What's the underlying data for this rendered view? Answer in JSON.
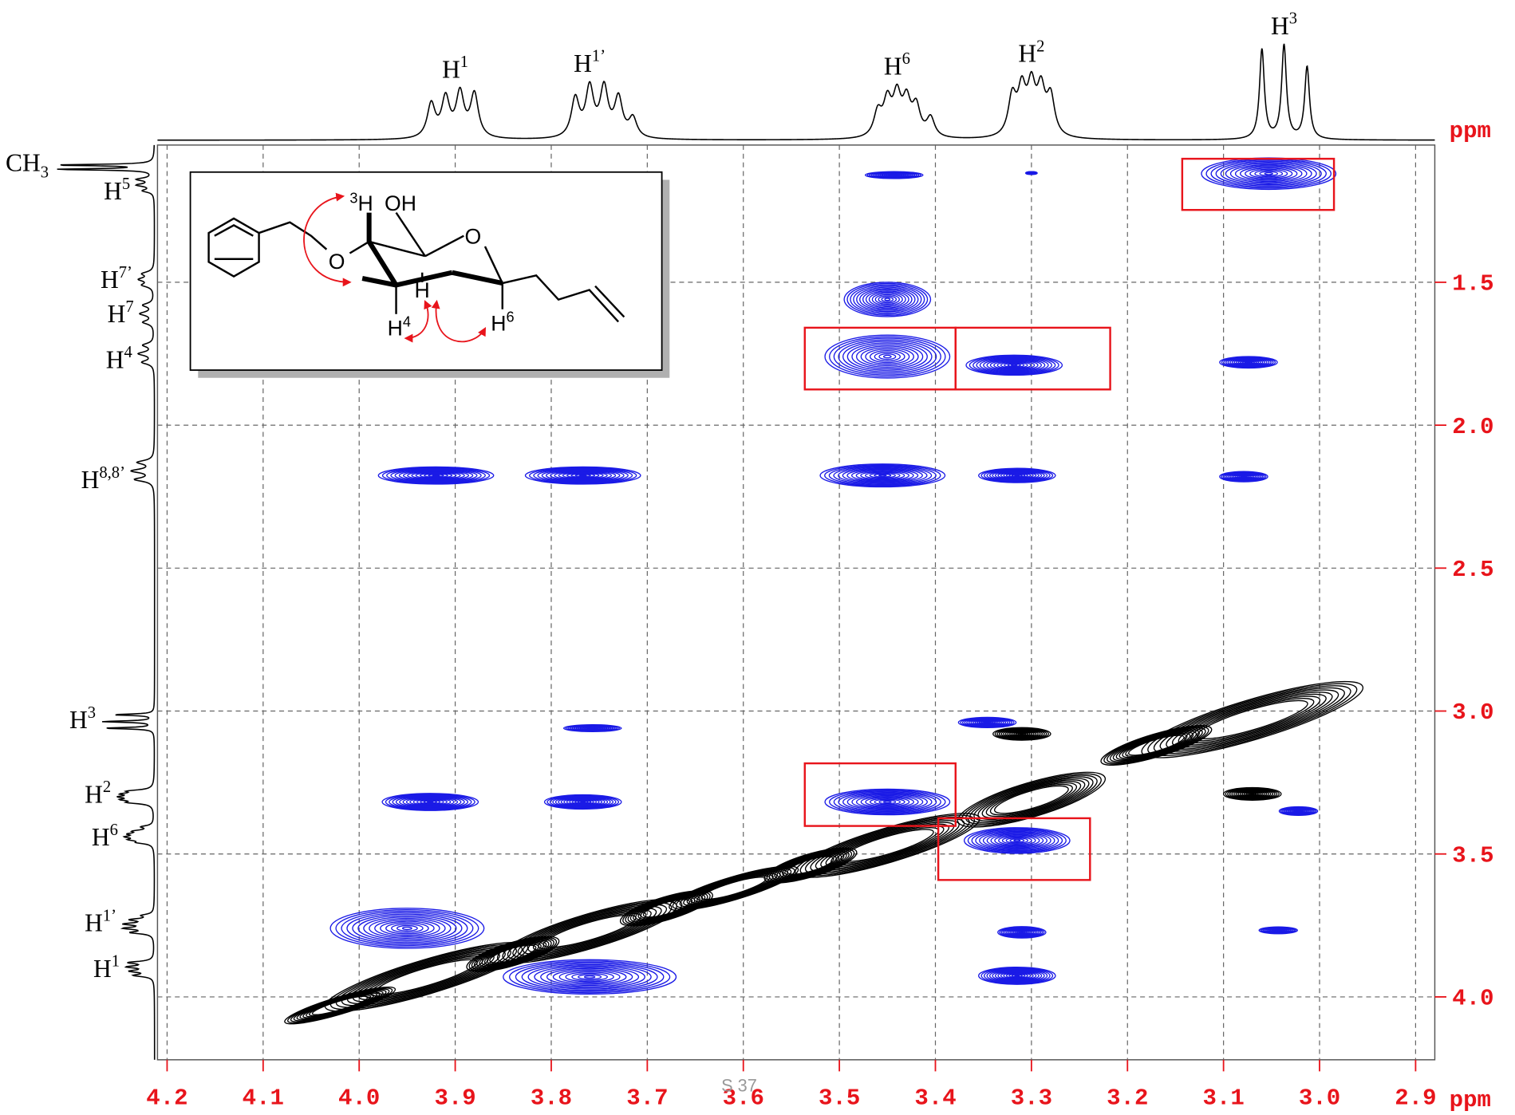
{
  "chart_data": {
    "type": "contour2d",
    "xlabel": "ppm",
    "ylabel": "ppm",
    "xlim": [
      4.21,
      2.88
    ],
    "ylim": [
      1.02,
      4.22
    ],
    "xticks": [
      4.2,
      4.1,
      {
        "value": 4.0,
        "label": "4.0"
      },
      3.9,
      3.8,
      3.7,
      3.6,
      3.5,
      3.4,
      3.3,
      3.2,
      3.1,
      {
        "value": 3.0,
        "label": "3.0"
      },
      2.9
    ],
    "yticks": [
      1.5,
      {
        "value": 2.0,
        "label": "2.0"
      },
      2.5,
      {
        "value": 3.0,
        "label": "3.0"
      },
      3.5,
      {
        "value": 4.0,
        "label": "4.0"
      }
    ],
    "grid": true,
    "axis_color": "#e8141b",
    "series": [
      {
        "color": "#000000",
        "contour": "ring",
        "x": [
          4.02,
          3.93,
          3.84,
          3.76,
          3.68,
          3.61,
          3.53,
          3.45,
          3.3,
          3.17,
          3.07
        ],
        "y": [
          4.03,
          3.93,
          3.85,
          3.77,
          3.69,
          3.62,
          3.54,
          3.47,
          3.31,
          3.12,
          3.03
        ],
        "dx": [
          0.06,
          0.11,
          0.05,
          0.1,
          0.05,
          0.07,
          0.05,
          0.1,
          0.08,
          0.06,
          0.12
        ],
        "dy": [
          0.03,
          0.06,
          0.04,
          0.06,
          0.04,
          0.04,
          0.04,
          0.06,
          0.06,
          0.04,
          0.07
        ]
      },
      {
        "color": "#000000",
        "contour": "filled",
        "x": [
          3.31,
          3.07
        ],
        "y": [
          3.08,
          3.29
        ],
        "dx": [
          0.03,
          0.03
        ],
        "dy": [
          0.022,
          0.022
        ]
      },
      {
        "color": "#1a1ae6",
        "contour": "filled",
        "x": [
          3.053,
          3.443,
          3.3,
          3.45,
          3.45,
          3.318,
          3.074,
          3.92,
          3.767,
          3.455,
          3.315,
          3.079,
          3.757,
          3.346,
          3.926,
          3.767,
          3.45,
          3.315,
          3.31,
          3.315,
          3.043,
          3.022,
          3.95,
          3.76
        ],
        "y": [
          1.12,
          1.125,
          1.118,
          1.56,
          1.76,
          1.79,
          1.78,
          2.176,
          2.176,
          2.176,
          2.176,
          2.18,
          3.06,
          3.04,
          3.318,
          3.318,
          3.318,
          3.453,
          3.774,
          3.926,
          3.767,
          3.35,
          3.76,
          3.93
        ],
        "dx": [
          0.07,
          0.03,
          0.006,
          0.045,
          0.065,
          0.05,
          0.03,
          0.06,
          0.06,
          0.065,
          0.04,
          0.025,
          0.03,
          0.03,
          0.05,
          0.04,
          0.065,
          0.055,
          0.025,
          0.04,
          0.02,
          0.02,
          0.08,
          0.09
        ],
        "dy": [
          0.055,
          0.012,
          0.005,
          0.06,
          0.075,
          0.035,
          0.02,
          0.03,
          0.03,
          0.04,
          0.025,
          0.018,
          0.012,
          0.018,
          0.03,
          0.025,
          0.045,
          0.045,
          0.02,
          0.03,
          0.012,
          0.015,
          0.07,
          0.06
        ]
      }
    ],
    "boxes": {
      "color": "#e8141b",
      "x": [
        [
          3.143,
          2.985
        ],
        [
          3.536,
          3.379
        ],
        [
          3.379,
          3.218
        ],
        [
          3.536,
          3.379
        ],
        [
          3.397,
          3.239
        ]
      ],
      "y": [
        [
          1.068,
          1.247
        ],
        [
          1.659,
          1.875
        ],
        [
          1.659,
          1.875
        ],
        [
          3.183,
          3.402
        ],
        [
          3.375,
          3.591
        ]
      ]
    },
    "projection": {
      "color": "#000000",
      "lines": [
        [
          1.09,
          1.8,
          0.003
        ],
        [
          1.105,
          1.8,
          0.003
        ],
        [
          1.14,
          0.3,
          0.006
        ],
        [
          1.16,
          0.3,
          0.006
        ],
        [
          1.18,
          0.2,
          0.006
        ],
        [
          1.47,
          0.2,
          0.008
        ],
        [
          1.49,
          0.25,
          0.008
        ],
        [
          1.51,
          0.2,
          0.008
        ],
        [
          1.58,
          0.2,
          0.008
        ],
        [
          1.61,
          0.25,
          0.008
        ],
        [
          1.64,
          0.2,
          0.008
        ],
        [
          1.72,
          0.2,
          0.008
        ],
        [
          1.75,
          0.28,
          0.008
        ],
        [
          1.78,
          0.22,
          0.008
        ],
        [
          2.13,
          0.3,
          0.008
        ],
        [
          2.16,
          0.4,
          0.008
        ],
        [
          2.19,
          0.35,
          0.008
        ],
        [
          3.013,
          0.75,
          0.003
        ],
        [
          3.037,
          0.97,
          0.003
        ],
        [
          3.06,
          0.93,
          0.003
        ],
        [
          3.28,
          0.4,
          0.005
        ],
        [
          3.29,
          0.45,
          0.005
        ],
        [
          3.3,
          0.48,
          0.005
        ],
        [
          3.31,
          0.45,
          0.005
        ],
        [
          3.32,
          0.4,
          0.005
        ],
        [
          3.405,
          0.2,
          0.005
        ],
        [
          3.42,
          0.3,
          0.005
        ],
        [
          3.43,
          0.35,
          0.005
        ],
        [
          3.44,
          0.4,
          0.005
        ],
        [
          3.45,
          0.35,
          0.005
        ],
        [
          3.46,
          0.25,
          0.005
        ],
        [
          3.715,
          0.2,
          0.005
        ],
        [
          3.73,
          0.4,
          0.005
        ],
        [
          3.745,
          0.5,
          0.005
        ],
        [
          3.76,
          0.5,
          0.005
        ],
        [
          3.775,
          0.4,
          0.005
        ],
        [
          3.88,
          0.45,
          0.005
        ],
        [
          3.895,
          0.45,
          0.005
        ],
        [
          3.91,
          0.4,
          0.005
        ],
        [
          3.925,
          0.35,
          0.005
        ]
      ]
    },
    "projection_labels_top": [
      {
        "text": "H",
        "sup": "1",
        "ppm": 3.9
      },
      {
        "text": "H",
        "sup": "1’",
        "ppm": 3.76
      },
      {
        "text": "H",
        "sup": "6",
        "ppm": 3.44
      },
      {
        "text": "H",
        "sup": "2",
        "ppm": 3.3
      },
      {
        "text": "H",
        "sup": "3",
        "ppm": 3.037
      }
    ],
    "projection_labels_left": [
      {
        "text": "CH",
        "sub": "3",
        "ppm": 1.08
      },
      {
        "text": "H",
        "sup": "5",
        "ppm": 1.18
      },
      {
        "text": "H",
        "sup": "7’",
        "ppm": 1.49
      },
      {
        "text": "H",
        "sup": "7",
        "ppm": 1.61
      },
      {
        "text": "H",
        "sup": "4",
        "ppm": 1.77
      },
      {
        "text": "H",
        "sup": "8,8’",
        "ppm": 2.19
      },
      {
        "text": "H",
        "sup": "3",
        "ppm": 3.03
      },
      {
        "text": "H",
        "sup": "2",
        "ppm": 3.29
      },
      {
        "text": "H",
        "sup": "6",
        "ppm": 3.44
      },
      {
        "text": "H",
        "sup": "1’",
        "ppm": 3.74
      },
      {
        "text": "H",
        "sup": "1",
        "ppm": 3.9
      }
    ],
    "inset": {
      "labels": [
        {
          "text": "O"
        },
        {
          "pre": "3",
          "text": "H"
        },
        {
          "text": "OH"
        },
        {
          "text": "O"
        },
        {
          "text": "H"
        },
        {
          "text": "H",
          "sup": "4"
        },
        {
          "text": "H",
          "sup": "6"
        }
      ]
    },
    "page_label": "S 37"
  }
}
